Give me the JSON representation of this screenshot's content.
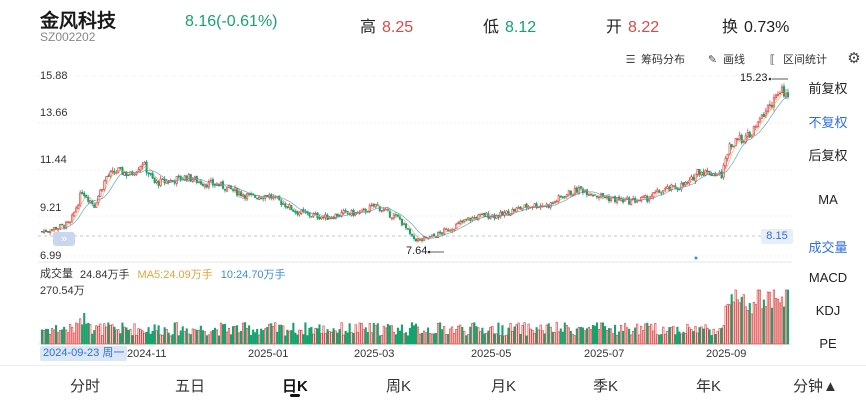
{
  "header": {
    "name": "金风科技",
    "code": "SZ002202",
    "price_change": "8.16(-0.61%)",
    "high_label": "高",
    "high_value": "8.25",
    "low_label": "低",
    "low_value": "8.12",
    "open_label": "开",
    "open_value": "8.22",
    "turnover_label": "换",
    "turnover_value": "0.73%"
  },
  "toolbar": {
    "chips_label": "筹码分布",
    "draw_label": "画线",
    "range_label": "区间统计"
  },
  "price_axis": {
    "ticks": [
      "15.88",
      "13.66",
      "11.44",
      "9.21",
      "6.99"
    ],
    "max_marker": "15.23",
    "min_marker": "7.64",
    "current_marker": "8.15"
  },
  "right_menu": {
    "items": [
      "前复权",
      "不复权",
      "后复权",
      "MA",
      "成交量",
      "MACD",
      "KDJ",
      "PE"
    ],
    "active": [
      "不复权",
      "成交量"
    ]
  },
  "volume": {
    "title": "成交量",
    "value": "24.84万手",
    "ma5": "MA5:24.09万手",
    "ma10": "10:24.70万手",
    "max_label": "270.54万"
  },
  "x_axis": {
    "selected_date": "2024-09-23 周一",
    "ticks": [
      "2024-11",
      "2025-01",
      "2025-03",
      "2025-05",
      "2025-07",
      "2025-09"
    ]
  },
  "bottom_tabs": [
    "分时",
    "五日",
    "日K",
    "周K",
    "月K",
    "季K",
    "年K",
    "分钟▲"
  ],
  "active_tab": "日K",
  "colors": {
    "up": "#e04848",
    "down": "#15a36e",
    "ma5": "#e8a23a",
    "ma10": "#3a8fd8",
    "accent": "#2f6fde"
  }
}
